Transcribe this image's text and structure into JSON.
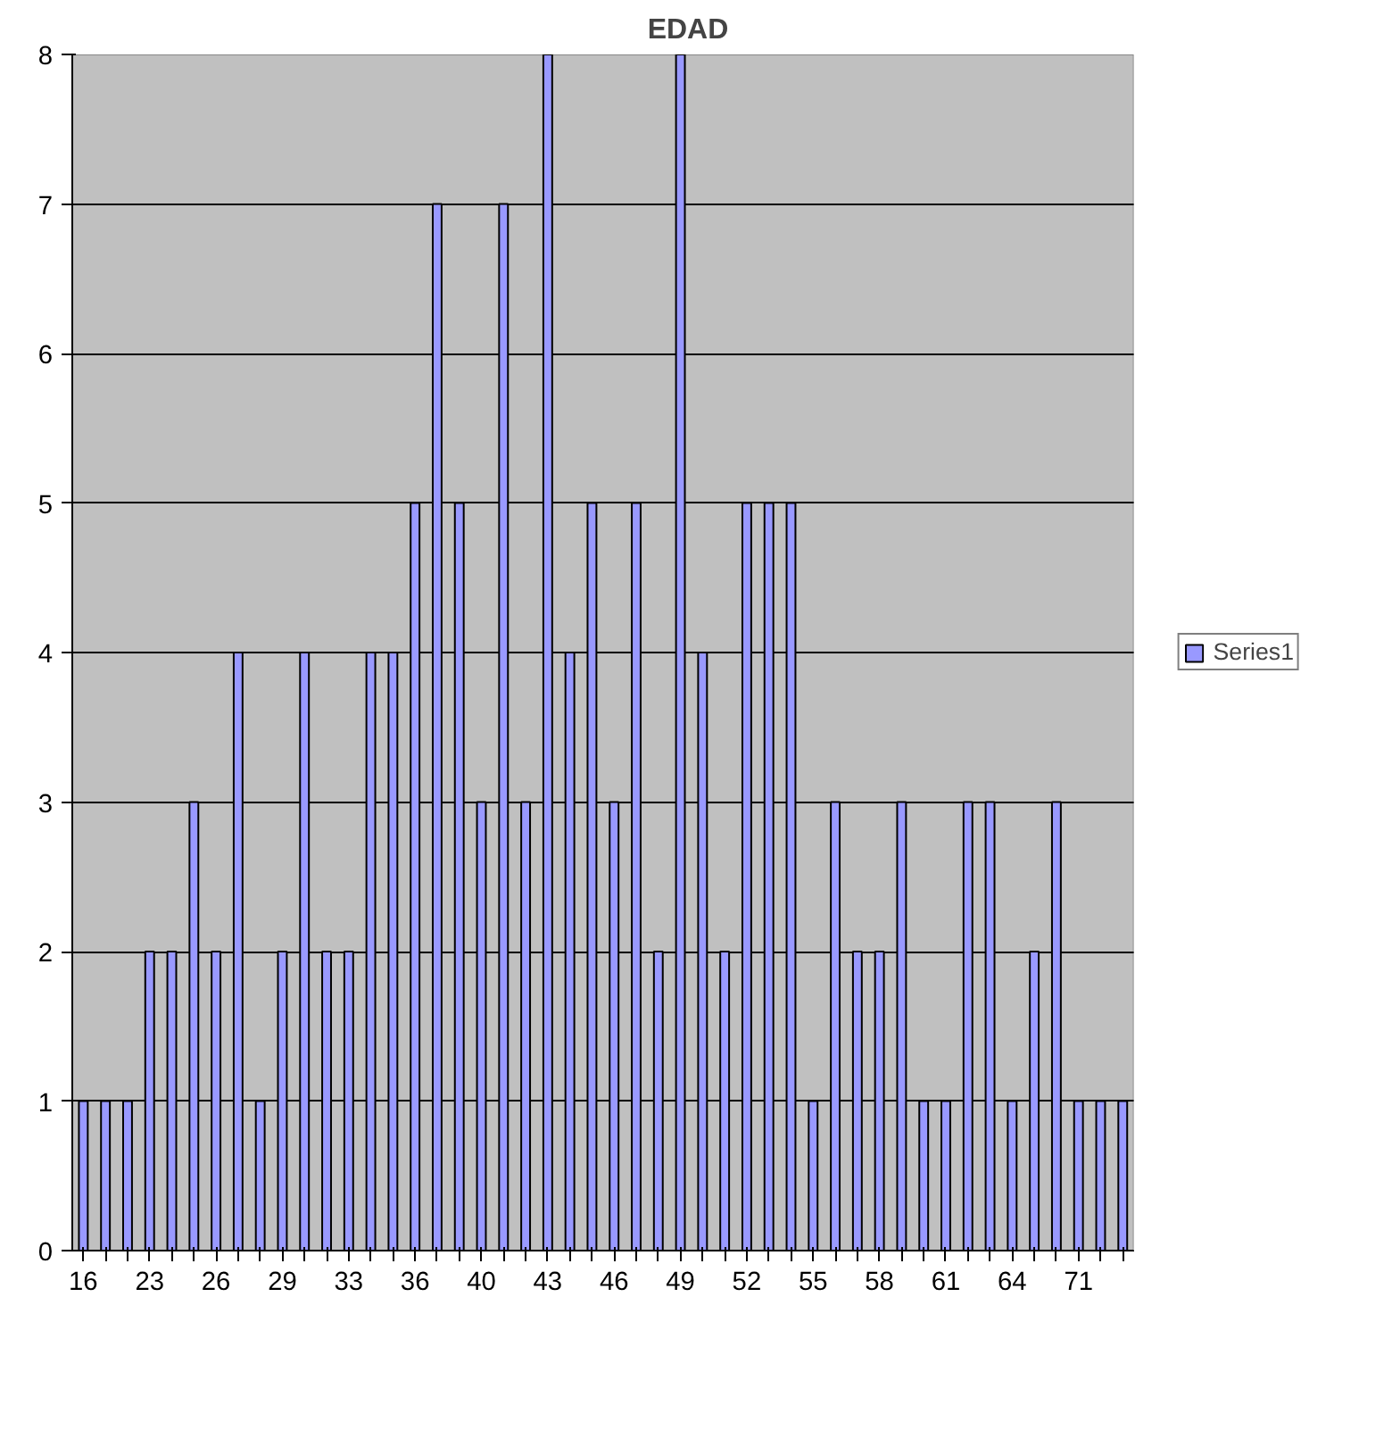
{
  "chart_data": {
    "type": "bar",
    "title": "EDAD",
    "categories": [
      "16",
      null,
      null,
      "23",
      null,
      null,
      "26",
      null,
      null,
      "29",
      null,
      null,
      "33",
      null,
      null,
      "36",
      null,
      null,
      "40",
      null,
      null,
      "43",
      null,
      null,
      "46",
      null,
      null,
      "49",
      null,
      null,
      "52",
      null,
      null,
      "55",
      null,
      null,
      "58",
      null,
      null,
      "61",
      null,
      null,
      "64",
      null,
      null,
      "71",
      null,
      null
    ],
    "series": [
      {
        "name": "Series1",
        "color": "#9999ff",
        "values": [
          1,
          1,
          1,
          2,
          2,
          3,
          2,
          4,
          1,
          2,
          4,
          2,
          2,
          4,
          4,
          5,
          7,
          5,
          3,
          7,
          3,
          8,
          4,
          5,
          3,
          5,
          2,
          8,
          4,
          2,
          5,
          5,
          5,
          1,
          3,
          2,
          2,
          3,
          1,
          1,
          3,
          3,
          1,
          2,
          3,
          1,
          1,
          1
        ]
      }
    ],
    "ylim": [
      0,
      8
    ],
    "yticks": [
      0,
      1,
      2,
      3,
      4,
      5,
      6,
      7,
      8
    ],
    "grid": "y",
    "legend": "right"
  }
}
